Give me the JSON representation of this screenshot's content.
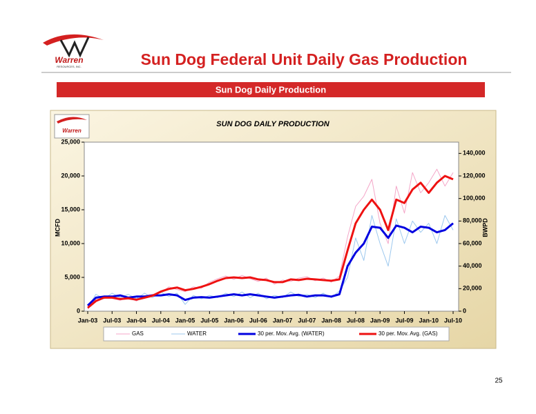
{
  "header": {
    "title": "Sun Dog Federal Unit Daily Gas Production",
    "subtitle": "Sun Dog Daily Production",
    "logo_text": "Warren",
    "logo_subtext": "RESOURCES, INC."
  },
  "page_number": "25",
  "chart_data": {
    "type": "line",
    "title": "SUN DOG DAILY PRODUCTION",
    "logo_text": "Warren",
    "ylabel": "MCFD",
    "y2label": "BWPD",
    "x": [
      "Jan-03",
      "Mar-03",
      "May-03",
      "Jul-03",
      "Sep-03",
      "Nov-03",
      "Jan-04",
      "Mar-04",
      "May-04",
      "Jul-04",
      "Sep-04",
      "Nov-04",
      "Jan-05",
      "Mar-05",
      "May-05",
      "Jul-05",
      "Sep-05",
      "Nov-05",
      "Jan-06",
      "Mar-06",
      "May-06",
      "Jul-06",
      "Sep-06",
      "Nov-06",
      "Jan-07",
      "Mar-07",
      "May-07",
      "Jul-07",
      "Sep-07",
      "Nov-07",
      "Jan-08",
      "Mar-08",
      "May-08",
      "Jul-08",
      "Sep-08",
      "Nov-08",
      "Jan-09",
      "Mar-09",
      "May-09",
      "Jul-09",
      "Sep-09",
      "Nov-09",
      "Jan-10",
      "Mar-10",
      "May-10",
      "Jul-10"
    ],
    "xticks": [
      "Jan-03",
      "Jul-03",
      "Jan-04",
      "Jul-04",
      "Jan-05",
      "Jul-05",
      "Jan-06",
      "Jul-06",
      "Jan-07",
      "Jul-07",
      "Jan-08",
      "Jul-08",
      "Jan-09",
      "Jul-09",
      "Jan-10",
      "Jul-10"
    ],
    "ylim": [
      0,
      25000
    ],
    "yticks": [
      0,
      {
        "value": 5000,
        "label": "5,000"
      },
      {
        "value": 10000,
        "label": "10,000"
      },
      {
        "value": 15000,
        "label": "15,000"
      },
      {
        "value": 20000,
        "label": "20,000"
      },
      {
        "value": 25000,
        "label": "25,000"
      }
    ],
    "y2lim": [
      0,
      150000
    ],
    "y2ticks": [
      0,
      {
        "value": 20000,
        "label": "20,000"
      },
      {
        "value": 40000,
        "label": "40,000"
      },
      {
        "value": 60000,
        "label": "60,000"
      },
      {
        "value": 80000,
        "label": "80,000"
      },
      {
        "value": 100000,
        "label": "100,000"
      },
      {
        "value": 120000,
        "label": "120,000"
      },
      {
        "value": 140000,
        "label": "140,000"
      }
    ],
    "series": [
      {
        "name": "GAS",
        "color": "#f4a6c8",
        "width": 1,
        "values": [
          300,
          1800,
          2200,
          1900,
          1600,
          2100,
          1500,
          2300,
          2500,
          2700,
          3600,
          3200,
          2900,
          3600,
          3400,
          4300,
          4800,
          5200,
          4700,
          5300,
          4800,
          4400,
          4900,
          4000,
          4600,
          4400,
          4900,
          5100,
          4500,
          4900,
          4300,
          5200,
          11000,
          15500,
          17000,
          19500,
          13000,
          10000,
          18500,
          14500,
          20500,
          17500,
          19000,
          21000,
          18500,
          20500
        ]
      },
      {
        "name": "WATER",
        "color": "#9cc8ee",
        "width": 1,
        "axis": "y2",
        "values": [
          3000,
          15000,
          11000,
          16000,
          12000,
          15000,
          11000,
          16000,
          12000,
          17000,
          13000,
          16000,
          6000,
          14000,
          11000,
          14000,
          12000,
          16000,
          13000,
          17000,
          12000,
          16000,
          11000,
          14000,
          12000,
          17000,
          13000,
          15000,
          12000,
          16000,
          12000,
          18000,
          30000,
          65000,
          45000,
          85000,
          60000,
          40000,
          82000,
          60000,
          80000,
          70000,
          78000,
          60000,
          85000,
          72000
        ]
      },
      {
        "name": "30 per. Mov. Avg. (WATER)",
        "color": "#0000e0",
        "width": 3,
        "axis": "y2",
        "values": [
          5000,
          12000,
          13000,
          13000,
          14000,
          12000,
          13000,
          13000,
          14000,
          14000,
          15000,
          14000,
          10000,
          12000,
          12500,
          12000,
          13000,
          14000,
          15000,
          14000,
          15000,
          14000,
          13000,
          12000,
          13000,
          14000,
          14500,
          13000,
          14000,
          14000,
          13000,
          15000,
          40000,
          52000,
          60000,
          75000,
          74000,
          65000,
          76000,
          74000,
          70000,
          75000,
          74000,
          70000,
          72000,
          78000
        ]
      },
      {
        "name": "30 per. Mov. Avg. (GAS)",
        "color": "#ee1111",
        "width": 3,
        "values": [
          500,
          1500,
          2000,
          2000,
          1800,
          1900,
          1700,
          2000,
          2300,
          2900,
          3300,
          3500,
          3100,
          3300,
          3600,
          4000,
          4500,
          4900,
          5000,
          4900,
          5000,
          4700,
          4600,
          4300,
          4300,
          4700,
          4600,
          4800,
          4700,
          4600,
          4500,
          4700,
          9000,
          13000,
          15000,
          16500,
          15000,
          12000,
          16500,
          16000,
          18000,
          19000,
          17500,
          19000,
          20000,
          19500
        ]
      }
    ]
  }
}
